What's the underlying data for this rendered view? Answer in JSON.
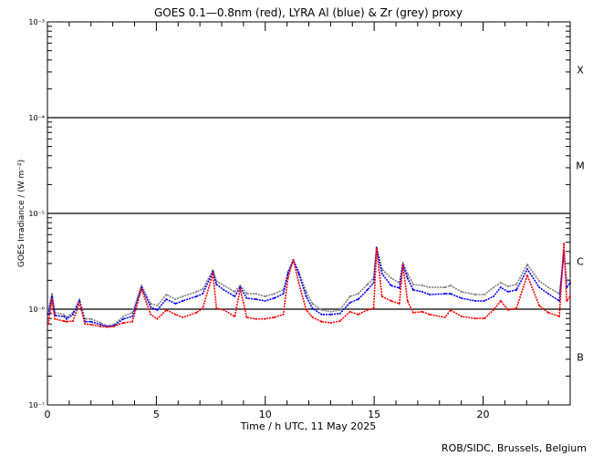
{
  "chart_data": {
    "type": "line",
    "title": "GOES 0.1—0.8nm (red), LYRA Al (blue) & Zr (grey) proxy",
    "xlabel": "Time / h UTC, 11 May 2025",
    "ylabel": "GOES Irradiance / (W m⁻²)",
    "xlim": [
      0,
      24
    ],
    "ylim": [
      1e-07,
      0.001
    ],
    "yscale": "log",
    "x_ticks": [
      0,
      5,
      10,
      15,
      20
    ],
    "y_ticks": [
      1e-07,
      1e-06,
      1e-05,
      0.0001,
      0.001
    ],
    "y_tick_labels": [
      "10⁻⁷",
      "10⁻⁶",
      "10⁻⁵",
      "10⁻⁴",
      "10⁻³"
    ],
    "flare_class_labels": [
      {
        "label": "B",
        "range": [
          1e-07,
          1e-06
        ]
      },
      {
        "label": "C",
        "range": [
          1e-06,
          1e-05
        ]
      },
      {
        "label": "M",
        "range": [
          1e-05,
          0.0001
        ]
      },
      {
        "label": "X",
        "range": [
          0.0001,
          0.001
        ]
      }
    ],
    "reference_lines": [
      1e-06,
      1e-05,
      0.0001
    ],
    "x": [
      0.04,
      0.21,
      0.34,
      0.76,
      0.88,
      1.17,
      1.47,
      1.72,
      2.01,
      2.43,
      2.73,
      3.06,
      3.48,
      3.9,
      4.32,
      4.74,
      5.04,
      5.46,
      5.88,
      6.21,
      6.84,
      7.13,
      7.6,
      7.76,
      8.1,
      8.6,
      8.85,
      9.15,
      9.57,
      9.99,
      10.41,
      10.83,
      11.04,
      11.29,
      11.54,
      11.88,
      12.17,
      12.59,
      13.01,
      13.43,
      13.89,
      14.27,
      14.69,
      14.98,
      15.11,
      15.36,
      15.78,
      16.16,
      16.32,
      16.53,
      16.79,
      17.21,
      17.54,
      18.25,
      18.51,
      19.01,
      19.64,
      20.06,
      20.48,
      20.81,
      21.15,
      21.53,
      22.03,
      22.58,
      22.99,
      23.5,
      23.71,
      23.84,
      24.0
    ],
    "series": [
      {
        "key": "grey",
        "color": "#808080",
        "values": [
          9.8e-07,
          1.45e-06,
          9.2e-07,
          8.8e-07,
          8.2e-07,
          9.2e-07,
          1.27e-06,
          7.9e-07,
          7.9e-07,
          7.2e-07,
          6.7e-07,
          6.9e-07,
          8.4e-07,
          9.2e-07,
          1.77e-06,
          1.14e-06,
          1.09e-06,
          1.42e-06,
          1.27e-06,
          1.36e-06,
          1.52e-06,
          1.62e-06,
          2.57e-06,
          1.97e-06,
          1.77e-06,
          1.52e-06,
          1.77e-06,
          1.45e-06,
          1.45e-06,
          1.36e-06,
          1.45e-06,
          1.59e-06,
          2.46e-06,
          3.27e-06,
          2.46e-06,
          1.52e-06,
          1.14e-06,
          9.8e-07,
          9.4e-07,
          9.8e-07,
          1.36e-06,
          1.45e-06,
          1.81e-06,
          2.11e-06,
          4.44e-06,
          2.62e-06,
          2.11e-06,
          1.89e-06,
          3.06e-06,
          2.35e-06,
          1.81e-06,
          1.77e-06,
          1.69e-06,
          1.69e-06,
          1.77e-06,
          1.52e-06,
          1.42e-06,
          1.42e-06,
          1.69e-06,
          1.89e-06,
          1.73e-06,
          1.81e-06,
          2.93e-06,
          1.97e-06,
          1.69e-06,
          1.45e-06,
          3.65e-06,
          1.97e-06,
          2.11e-06
        ]
      },
      {
        "key": "blue",
        "color": "#0000ff",
        "values": [
          8.8e-07,
          1.36e-06,
          8.6e-07,
          8.4e-07,
          7.9e-07,
          8.8e-07,
          1.22e-06,
          7.4e-07,
          7.4e-07,
          6.9e-07,
          6.6e-07,
          6.7e-07,
          7.9e-07,
          8.4e-07,
          1.69e-06,
          1.05e-06,
          9.8e-07,
          1.27e-06,
          1.14e-06,
          1.22e-06,
          1.36e-06,
          1.45e-06,
          2.46e-06,
          1.81e-06,
          1.59e-06,
          1.36e-06,
          1.69e-06,
          1.3e-06,
          1.27e-06,
          1.22e-06,
          1.3e-06,
          1.45e-06,
          2.35e-06,
          3.27e-06,
          2.35e-06,
          1.36e-06,
          1.02e-06,
          8.8e-07,
          8.8e-07,
          9e-07,
          1.17e-06,
          1.27e-06,
          1.59e-06,
          1.89e-06,
          4.35e-06,
          2.35e-06,
          1.77e-06,
          1.66e-06,
          2.93e-06,
          2.11e-06,
          1.59e-06,
          1.52e-06,
          1.42e-06,
          1.45e-06,
          1.45e-06,
          1.3e-06,
          1.22e-06,
          1.22e-06,
          1.36e-06,
          1.69e-06,
          1.52e-06,
          1.59e-06,
          2.62e-06,
          1.69e-06,
          1.45e-06,
          1.22e-06,
          4.07e-06,
          1.69e-06,
          1.89e-06
        ]
      },
      {
        "key": "red",
        "color": "#ff0000",
        "values": [
          7e-07,
          1.27e-06,
          7.9e-07,
          7.5e-07,
          7.4e-07,
          7.5e-07,
          1.17e-06,
          7e-07,
          6.9e-07,
          6.6e-07,
          6.5e-07,
          6.6e-07,
          7.2e-07,
          7.4e-07,
          1.62e-06,
          8.8e-07,
          7.9e-07,
          9.8e-07,
          8.8e-07,
          8.2e-07,
          9.2e-07,
          1.02e-06,
          2.35e-06,
          1.02e-06,
          9.8e-07,
          8.4e-07,
          1.62e-06,
          8.2e-07,
          7.9e-07,
          7.9e-07,
          8.2e-07,
          8.8e-07,
          2.11e-06,
          3.27e-06,
          1.89e-06,
          9.8e-07,
          8.2e-07,
          7.4e-07,
          7.2e-07,
          7.5e-07,
          9.4e-07,
          8.8e-07,
          9.8e-07,
          1.02e-06,
          4.25e-06,
          1.36e-06,
          1.22e-06,
          1.14e-06,
          2.93e-06,
          1.22e-06,
          9.2e-07,
          9.4e-07,
          8.8e-07,
          8.2e-07,
          9.8e-07,
          8.4e-07,
          8e-07,
          8e-07,
          9.8e-07,
          1.22e-06,
          9.8e-07,
          1.02e-06,
          2.25e-06,
          1.09e-06,
          9.2e-07,
          8.4e-07,
          4.85e-06,
          1.22e-06,
          1.36e-06
        ]
      }
    ],
    "grid": false,
    "legend": "none (colors described in title)"
  },
  "footer": {
    "credit": "ROB/SIDC, Brussels, Belgium"
  }
}
